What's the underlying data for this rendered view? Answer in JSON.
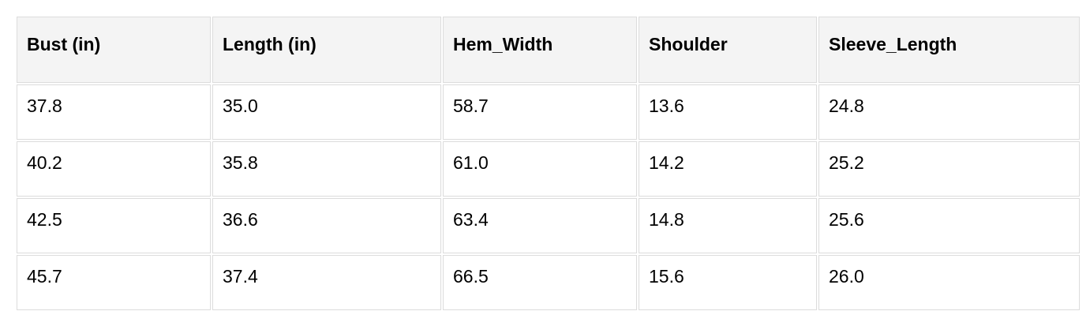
{
  "table": {
    "headers": [
      "Bust (in)",
      "Length (in)",
      "Hem_Width",
      "Shoulder",
      "Sleeve_Length"
    ],
    "rows": [
      [
        "37.8",
        "35.0",
        "58.7",
        "13.6",
        "24.8"
      ],
      [
        "40.2",
        "35.8",
        "61.0",
        "14.2",
        "25.2"
      ],
      [
        "42.5",
        "36.6",
        "63.4",
        "14.8",
        "25.6"
      ],
      [
        "45.7",
        "37.4",
        "66.5",
        "15.6",
        "26.0"
      ]
    ]
  }
}
